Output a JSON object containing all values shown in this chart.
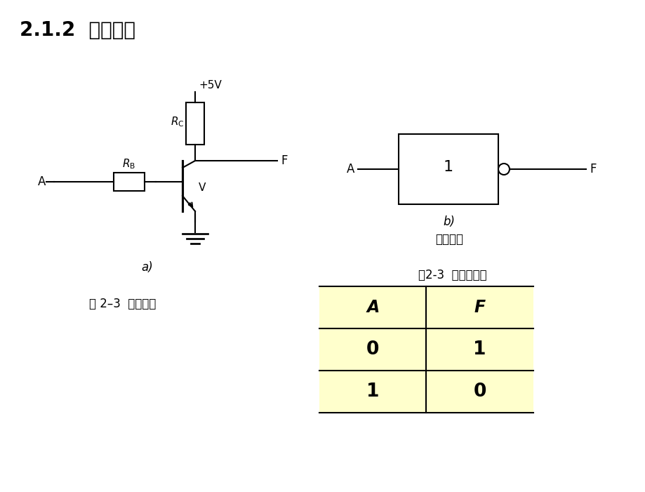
{
  "title": "2.1.2  非门电路",
  "title_fontsize": 20,
  "bg_color": "#ffffff",
  "table_bg": "#ffffcc",
  "table_title": "表2-3  非门真値表",
  "table_headers": [
    "A",
    "F"
  ],
  "table_data": [
    [
      "0",
      "1"
    ],
    [
      "1",
      "0"
    ]
  ],
  "label_fig": "图 2–3  非门电路",
  "label_sub_a": "a)",
  "label_sub_b": "b)",
  "label_logic": "逻辑符号",
  "fig_width": 9.2,
  "fig_height": 7.01,
  "dpi": 100
}
